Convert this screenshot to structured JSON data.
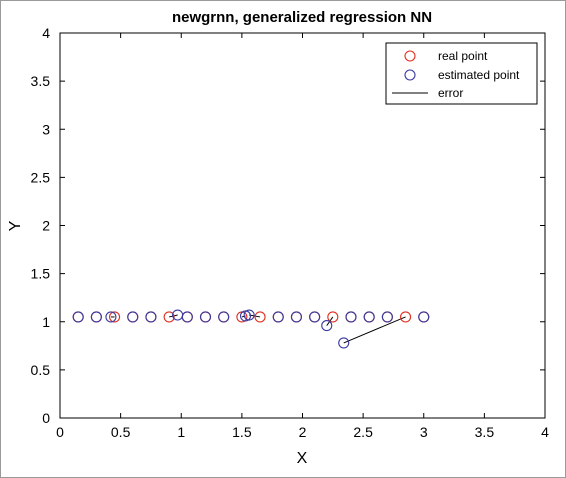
{
  "chart_data": {
    "type": "scatter",
    "title": "newgrnn, generalized regression NN",
    "xlabel": "X",
    "ylabel": "Y",
    "xlim": [
      0,
      4
    ],
    "ylim": [
      0,
      4
    ],
    "xticks": [
      "0",
      "0.5",
      "1",
      "1.5",
      "2",
      "2.5",
      "3",
      "3.5",
      "4"
    ],
    "yticks": [
      "0",
      "0.5",
      "1",
      "1.5",
      "2",
      "2.5",
      "3",
      "3.5",
      "4"
    ],
    "grid": false,
    "legend_position": "top-right",
    "legend": [
      "real point",
      "estimated point",
      "error"
    ],
    "colors": {
      "real": "#e03020",
      "estimated": "#3a3aa0",
      "error": "#000000"
    },
    "series": [
      {
        "name": "real point",
        "points": [
          [
            0.15,
            1.05
          ],
          [
            0.3,
            1.05
          ],
          [
            0.45,
            1.05
          ],
          [
            0.6,
            1.05
          ],
          [
            0.75,
            1.05
          ],
          [
            0.9,
            1.05
          ],
          [
            1.05,
            1.05
          ],
          [
            1.2,
            1.05
          ],
          [
            1.35,
            1.05
          ],
          [
            1.5,
            1.05
          ],
          [
            1.65,
            1.05
          ],
          [
            1.8,
            1.05
          ],
          [
            1.95,
            1.05
          ],
          [
            2.1,
            1.05
          ],
          [
            2.25,
            1.05
          ],
          [
            2.4,
            1.05
          ],
          [
            2.55,
            1.05
          ],
          [
            2.7,
            1.05
          ],
          [
            2.85,
            1.05
          ],
          [
            3.0,
            1.05
          ]
        ]
      },
      {
        "name": "estimated point",
        "points": [
          [
            0.15,
            1.05
          ],
          [
            0.3,
            1.05
          ],
          [
            0.42,
            1.05
          ],
          [
            0.6,
            1.05
          ],
          [
            0.75,
            1.05
          ],
          [
            0.97,
            1.07
          ],
          [
            1.05,
            1.05
          ],
          [
            1.2,
            1.05
          ],
          [
            1.35,
            1.05
          ],
          [
            1.53,
            1.06
          ],
          [
            1.56,
            1.07
          ],
          [
            1.8,
            1.05
          ],
          [
            1.95,
            1.05
          ],
          [
            2.1,
            1.05
          ],
          [
            2.2,
            0.96
          ],
          [
            2.4,
            1.05
          ],
          [
            2.55,
            1.05
          ],
          [
            2.7,
            1.05
          ],
          [
            2.34,
            0.78
          ],
          [
            3.0,
            1.05
          ]
        ]
      }
    ]
  }
}
